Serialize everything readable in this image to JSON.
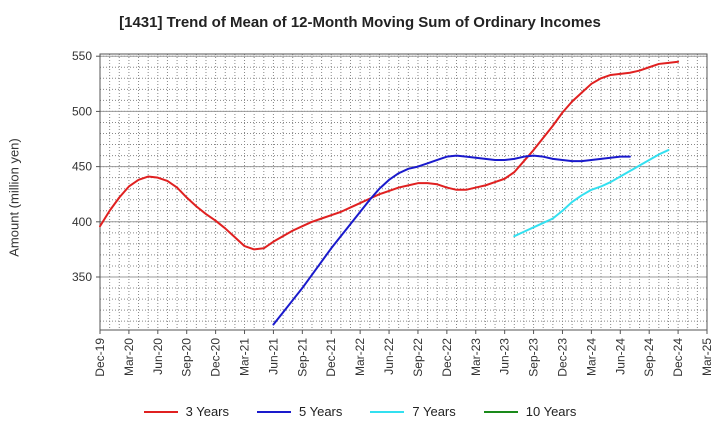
{
  "chart_data": {
    "type": "line",
    "title": "[1431]  Trend of Mean of 12-Month Moving Sum of Ordinary Incomes",
    "xlabel": "",
    "ylabel": "Amount (million yen)",
    "ylim": [
      302,
      552
    ],
    "yticks": [
      350,
      400,
      450,
      500,
      550
    ],
    "xtick_labels": [
      "Dec-19",
      "Mar-20",
      "Jun-20",
      "Sep-20",
      "Dec-20",
      "Mar-21",
      "Jun-21",
      "Sep-21",
      "Dec-21",
      "Mar-22",
      "Jun-22",
      "Sep-22",
      "Dec-22",
      "Mar-23",
      "Jun-23",
      "Sep-23",
      "Dec-23",
      "Mar-24",
      "Jun-24",
      "Sep-24",
      "Dec-24",
      "Mar-25"
    ],
    "x_start": "Dec-19",
    "x_months": 63,
    "grid": true,
    "legend_position": "bottom",
    "series": [
      {
        "name": "3 Years",
        "color": "#e02020",
        "start_index": 0,
        "values": [
          396,
          410,
          422,
          432,
          438,
          441,
          440,
          437,
          431,
          422,
          414,
          407,
          401,
          394,
          386,
          378,
          375,
          376,
          382,
          387,
          392,
          396,
          400,
          403,
          406,
          409,
          413,
          417,
          421,
          425,
          428,
          431,
          433,
          435,
          435,
          434,
          431,
          429,
          429,
          431,
          433,
          436,
          439,
          445,
          455,
          465,
          476,
          487,
          499,
          509,
          517,
          525,
          530,
          533,
          534,
          535,
          537,
          540,
          543,
          544,
          545
        ]
      },
      {
        "name": "5 Years",
        "color": "#1a1acc",
        "start_index": 18,
        "values": [
          307,
          318,
          329,
          340,
          352,
          364,
          376,
          387,
          398,
          409,
          420,
          430,
          438,
          444,
          448,
          450,
          453,
          456,
          459,
          460,
          459,
          458,
          457,
          456,
          456,
          457,
          459,
          460,
          459,
          457,
          456,
          455,
          455,
          456,
          457,
          458,
          459,
          459
        ]
      },
      {
        "name": "7 Years",
        "color": "#33e0f0",
        "start_index": 43,
        "values": [
          387,
          391,
          395,
          399,
          403,
          410,
          418,
          424,
          429,
          432,
          436,
          441,
          446,
          451,
          456,
          461,
          465
        ]
      },
      {
        "name": "10 Years",
        "color": "#1a8a1a",
        "start_index": 0,
        "values": []
      }
    ]
  }
}
